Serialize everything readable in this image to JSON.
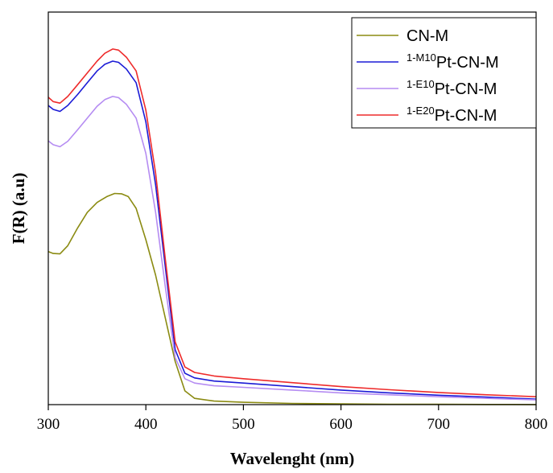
{
  "chart_data": {
    "type": "line",
    "title": "",
    "xlabel": "Wavelenght (nm)",
    "ylabel": "F(R) (a.u)",
    "xlim": [
      300,
      800
    ],
    "ylim": [
      0,
      1
    ],
    "x_ticks": [
      "300",
      "400",
      "500",
      "600",
      "700",
      "800"
    ],
    "y_ticks_shown": false,
    "grid": false,
    "legend_position": "top-right",
    "series": [
      {
        "name": "CN-M",
        "color": "#8b8b12",
        "points": [
          [
            300,
            0.39
          ],
          [
            305,
            0.385
          ],
          [
            312,
            0.384
          ],
          [
            320,
            0.405
          ],
          [
            330,
            0.45
          ],
          [
            340,
            0.49
          ],
          [
            350,
            0.515
          ],
          [
            360,
            0.53
          ],
          [
            368,
            0.538
          ],
          [
            375,
            0.537
          ],
          [
            382,
            0.53
          ],
          [
            390,
            0.5
          ],
          [
            400,
            0.42
          ],
          [
            410,
            0.33
          ],
          [
            420,
            0.22
          ],
          [
            430,
            0.11
          ],
          [
            440,
            0.035
          ],
          [
            450,
            0.016
          ],
          [
            470,
            0.009
          ],
          [
            500,
            0.006
          ],
          [
            550,
            0.003
          ],
          [
            600,
            0.002
          ],
          [
            650,
            0.001
          ],
          [
            700,
            0.0008
          ],
          [
            750,
            0.0005
          ],
          [
            800,
            0.0003
          ]
        ]
      },
      {
        "name": "1-M10Pt-CN-M",
        "name_sup": "1-M10",
        "name_main": "Pt-CN-M",
        "color": "#1b1bd6",
        "points": [
          [
            300,
            0.762
          ],
          [
            305,
            0.752
          ],
          [
            312,
            0.747
          ],
          [
            320,
            0.762
          ],
          [
            330,
            0.79
          ],
          [
            340,
            0.82
          ],
          [
            350,
            0.85
          ],
          [
            358,
            0.867
          ],
          [
            366,
            0.875
          ],
          [
            372,
            0.872
          ],
          [
            380,
            0.855
          ],
          [
            390,
            0.82
          ],
          [
            400,
            0.72
          ],
          [
            410,
            0.56
          ],
          [
            420,
            0.35
          ],
          [
            430,
            0.14
          ],
          [
            440,
            0.08
          ],
          [
            450,
            0.068
          ],
          [
            470,
            0.06
          ],
          [
            500,
            0.055
          ],
          [
            550,
            0.046
          ],
          [
            600,
            0.037
          ],
          [
            650,
            0.03
          ],
          [
            700,
            0.024
          ],
          [
            750,
            0.019
          ],
          [
            800,
            0.014
          ]
        ]
      },
      {
        "name": "1-E10Pt-CN-M",
        "name_sup": "1-E10",
        "name_main": "Pt-CN-M",
        "color": "#b58cf2",
        "points": [
          [
            300,
            0.672
          ],
          [
            305,
            0.662
          ],
          [
            312,
            0.657
          ],
          [
            320,
            0.671
          ],
          [
            330,
            0.7
          ],
          [
            340,
            0.73
          ],
          [
            350,
            0.76
          ],
          [
            358,
            0.777
          ],
          [
            366,
            0.785
          ],
          [
            372,
            0.782
          ],
          [
            380,
            0.765
          ],
          [
            390,
            0.73
          ],
          [
            400,
            0.64
          ],
          [
            410,
            0.49
          ],
          [
            420,
            0.3
          ],
          [
            430,
            0.12
          ],
          [
            440,
            0.066
          ],
          [
            450,
            0.055
          ],
          [
            470,
            0.048
          ],
          [
            500,
            0.044
          ],
          [
            550,
            0.037
          ],
          [
            600,
            0.03
          ],
          [
            650,
            0.025
          ],
          [
            700,
            0.02
          ],
          [
            750,
            0.016
          ],
          [
            800,
            0.012
          ]
        ]
      },
      {
        "name": "1-E20Pt-CN-M",
        "name_sup": "1-E20",
        "name_main": "Pt-CN-M",
        "color": "#ee2b2b",
        "points": [
          [
            300,
            0.783
          ],
          [
            305,
            0.772
          ],
          [
            312,
            0.768
          ],
          [
            320,
            0.785
          ],
          [
            330,
            0.815
          ],
          [
            340,
            0.845
          ],
          [
            350,
            0.875
          ],
          [
            358,
            0.895
          ],
          [
            366,
            0.906
          ],
          [
            372,
            0.903
          ],
          [
            380,
            0.885
          ],
          [
            390,
            0.85
          ],
          [
            400,
            0.75
          ],
          [
            410,
            0.59
          ],
          [
            420,
            0.37
          ],
          [
            430,
            0.16
          ],
          [
            440,
            0.096
          ],
          [
            450,
            0.082
          ],
          [
            470,
            0.073
          ],
          [
            500,
            0.066
          ],
          [
            550,
            0.056
          ],
          [
            600,
            0.046
          ],
          [
            650,
            0.038
          ],
          [
            700,
            0.031
          ],
          [
            750,
            0.025
          ],
          [
            800,
            0.02
          ]
        ]
      }
    ]
  }
}
